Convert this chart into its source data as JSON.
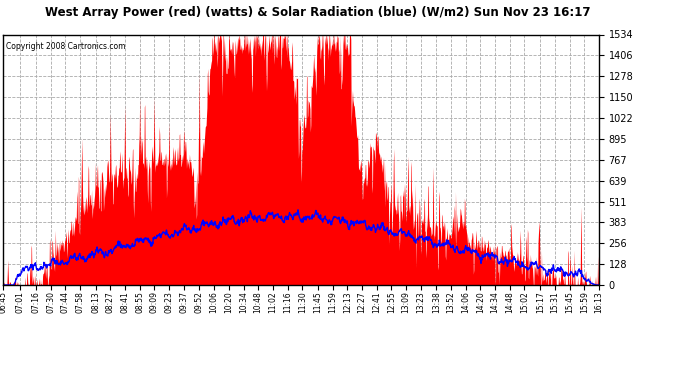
{
  "title": "West Array Power (red) (watts) & Solar Radiation (blue) (W/m2) Sun Nov 23 16:17",
  "copyright": "Copyright 2008 Cartronics.com",
  "background_color": "#ffffff",
  "plot_bg_color": "#ffffff",
  "red_color": "#ff0000",
  "blue_color": "#0000ff",
  "grid_color": "#aaaaaa",
  "ymin": 0.0,
  "ymax": 1533.7,
  "yticks": [
    0.0,
    127.8,
    255.6,
    383.4,
    511.2,
    639.0,
    766.8,
    894.6,
    1022.4,
    1150.2,
    1278.0,
    1405.8,
    1533.7
  ],
  "xtick_labels": [
    "06:45",
    "07:01",
    "07:16",
    "07:30",
    "07:44",
    "07:58",
    "08:13",
    "08:27",
    "08:41",
    "08:55",
    "09:09",
    "09:23",
    "09:37",
    "09:52",
    "10:06",
    "10:20",
    "10:34",
    "10:48",
    "11:02",
    "11:16",
    "11:30",
    "11:45",
    "11:59",
    "12:13",
    "12:27",
    "12:41",
    "12:55",
    "13:09",
    "13:23",
    "13:38",
    "13:52",
    "14:06",
    "14:20",
    "14:34",
    "14:48",
    "15:02",
    "15:17",
    "15:31",
    "15:45",
    "15:59",
    "16:13"
  ]
}
